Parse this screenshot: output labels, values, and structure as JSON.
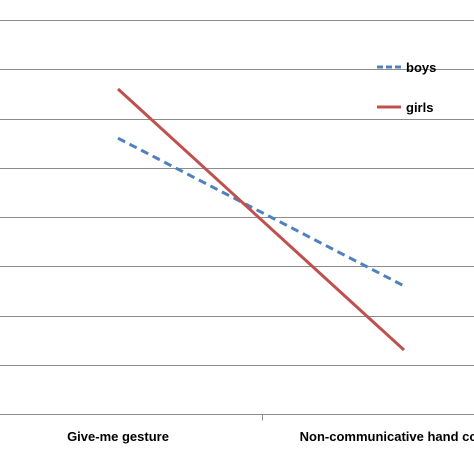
{
  "chart_data": {
    "type": "line",
    "categories": [
      "Give-me gesture",
      "Non-communicative hand contact"
    ],
    "series": [
      {
        "name": "boys",
        "values": [
          0.56,
          0.26
        ],
        "color": "#4F81BD",
        "dash": "dashed"
      },
      {
        "name": "girls",
        "values": [
          0.66,
          0.13
        ],
        "color": "#C0504D",
        "dash": "solid"
      }
    ],
    "ylim": [
      0,
      0.8
    ],
    "yticks": [
      0,
      0.1,
      0.2,
      0.3,
      0.4,
      0.5,
      0.6,
      0.7,
      0.8
    ],
    "grid": true,
    "legend_position": "top-right"
  }
}
